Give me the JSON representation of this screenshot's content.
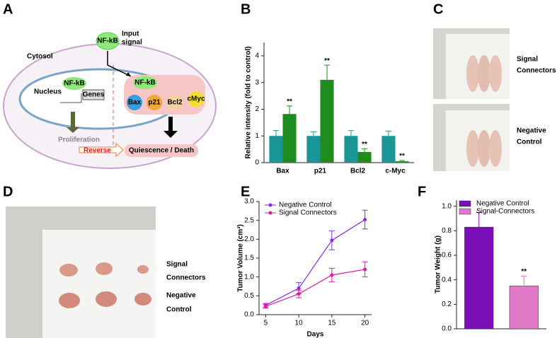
{
  "panel_labels": [
    "A",
    "B",
    "C",
    "D",
    "E",
    "F"
  ],
  "diagram": {
    "input_node": "NF-kB",
    "input_label": [
      "Input",
      "signal"
    ],
    "cytosol": "Cytosol",
    "nucleus": "Nucleus",
    "nuclear_node": "NF-kB",
    "genes": "Genes",
    "cyto_node": "NF-kB",
    "targets": [
      "Bax",
      "p21",
      "Bcl2",
      "cMyc"
    ],
    "proliferation": "Proliferation",
    "reverse": "Reverse",
    "outcome": "Quiescence / Death"
  },
  "photo_c": {
    "top_label": [
      "Signal",
      "Connectors"
    ],
    "bottom_label": [
      "Negative",
      "Control"
    ]
  },
  "photo_d": {
    "top_label": [
      "Signal",
      "Connectors"
    ],
    "bottom_label": [
      "Negative",
      "Control"
    ]
  },
  "chart_data": [
    {
      "type": "bar",
      "ylabel": "Relative intensity (fold to control)",
      "categories": [
        "Bax",
        "p21",
        "Bcl2",
        "c-Myc"
      ],
      "series": [
        {
          "color": "#1a9696",
          "values": [
            1,
            1,
            1,
            1
          ],
          "errors": [
            0.2,
            0.15,
            0.2,
            0.18
          ]
        },
        {
          "color": "#1f8c1f",
          "values": [
            1.82,
            3.1,
            0.4,
            0.05
          ],
          "errors": [
            0.3,
            0.55,
            0.12,
            0.03
          ],
          "annotations": [
            "**",
            "**",
            "**",
            "**"
          ]
        }
      ],
      "ylim": [
        0,
        4.5
      ],
      "yticks": [
        0,
        1,
        2,
        3,
        4
      ]
    },
    {
      "type": "line",
      "xlabel": "Days",
      "ylabel": "Tumor Volume (cm³)",
      "x": [
        5,
        10,
        15,
        20
      ],
      "series": [
        {
          "name": "Negative Control",
          "color": "#8a2be2",
          "values": [
            0.25,
            0.7,
            1.97,
            2.52
          ],
          "errors": [
            0.05,
            0.15,
            0.25,
            0.25
          ]
        },
        {
          "name": "Signal Connectors",
          "color": "#d6209c",
          "values": [
            0.22,
            0.55,
            1.05,
            1.2
          ],
          "errors": [
            0.05,
            0.1,
            0.18,
            0.2
          ]
        }
      ],
      "xlim": [
        4,
        21
      ],
      "xticks": [
        5,
        10,
        15,
        20
      ],
      "ylim": [
        0,
        3
      ],
      "yticks": [
        {
          "value": 0,
          "label": "0.0"
        },
        0.5,
        {
          "value": 1,
          "label": "1.0"
        },
        1.5,
        {
          "value": 2,
          "label": "2.0"
        },
        2.5,
        {
          "value": 3,
          "label": "3.0"
        }
      ]
    },
    {
      "type": "bar",
      "ylabel": "Tumor Weight (g)",
      "series": [
        {
          "name": "Negative Control",
          "color": "#7a0fb8",
          "values": [
            0.83
          ],
          "errors": [
            0.12
          ]
        },
        {
          "name": "Signal-Connectors",
          "color": "#e07ac8",
          "values": [
            0.35
          ],
          "errors": [
            0.08
          ],
          "annotations": [
            "**"
          ]
        }
      ],
      "ylim": [
        0,
        1.05
      ],
      "yticks": [
        {
          "value": 0,
          "label": "0.0"
        },
        0.2,
        0.4,
        0.6,
        0.8,
        {
          "value": 1,
          "label": "1.0"
        }
      ]
    }
  ]
}
